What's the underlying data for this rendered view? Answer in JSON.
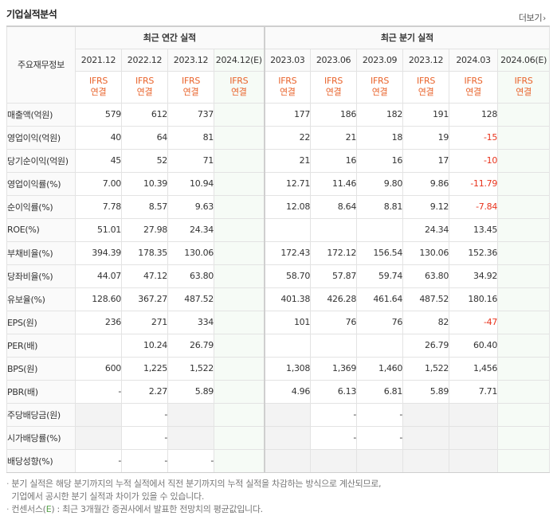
{
  "header": {
    "title": "기업실적분석",
    "more_label": "더보기"
  },
  "table": {
    "corner_label": "주요재무정보",
    "annual_group": "최근 연간 실적",
    "quarter_group": "최근 분기 실적",
    "annual_periods": [
      {
        "label": "2021.12",
        "est": false
      },
      {
        "label": "2022.12",
        "est": false
      },
      {
        "label": "2023.12",
        "est": false
      },
      {
        "label": "2024.12(E)",
        "est": true
      }
    ],
    "quarter_periods": [
      {
        "label": "2023.03",
        "est": false
      },
      {
        "label": "2023.06",
        "est": false
      },
      {
        "label": "2023.09",
        "est": false
      },
      {
        "label": "2023.12",
        "est": false
      },
      {
        "label": "2024.03",
        "est": false
      },
      {
        "label": "2024.06(E)",
        "est": true
      }
    ],
    "ifrs_label": "IFRS",
    "ifrs_sub": "연결",
    "rows": [
      {
        "label": "매출액(억원)",
        "annual": [
          "579",
          "612",
          "737",
          ""
        ],
        "quarter": [
          "177",
          "186",
          "182",
          "191",
          "128",
          ""
        ]
      },
      {
        "label": "영업이익(억원)",
        "annual": [
          "40",
          "64",
          "81",
          ""
        ],
        "quarter": [
          "22",
          "21",
          "18",
          "19",
          "-15",
          ""
        ]
      },
      {
        "label": "당기순이익(억원)",
        "annual": [
          "45",
          "52",
          "71",
          ""
        ],
        "quarter": [
          "21",
          "16",
          "16",
          "17",
          "-10",
          ""
        ]
      },
      {
        "label": "영업이익률(%)",
        "annual": [
          "7.00",
          "10.39",
          "10.94",
          ""
        ],
        "quarter": [
          "12.71",
          "11.46",
          "9.80",
          "9.86",
          "-11.79",
          ""
        ]
      },
      {
        "label": "순이익률(%)",
        "annual": [
          "7.78",
          "8.57",
          "9.63",
          ""
        ],
        "quarter": [
          "12.08",
          "8.64",
          "8.81",
          "9.12",
          "-7.84",
          ""
        ]
      },
      {
        "label": "ROE(%)",
        "annual": [
          "51.01",
          "27.98",
          "24.34",
          ""
        ],
        "quarter": [
          "",
          "",
          "",
          "24.34",
          "13.45",
          ""
        ]
      },
      {
        "label": "부채비율(%)",
        "annual": [
          "394.39",
          "178.35",
          "130.06",
          ""
        ],
        "quarter": [
          "172.43",
          "172.12",
          "156.54",
          "130.06",
          "152.36",
          ""
        ]
      },
      {
        "label": "당좌비율(%)",
        "annual": [
          "44.07",
          "47.12",
          "63.80",
          ""
        ],
        "quarter": [
          "58.70",
          "57.87",
          "59.74",
          "63.80",
          "34.92",
          ""
        ]
      },
      {
        "label": "유보율(%)",
        "annual": [
          "128.60",
          "367.27",
          "487.52",
          ""
        ],
        "quarter": [
          "401.38",
          "426.28",
          "461.64",
          "487.52",
          "180.16",
          ""
        ]
      },
      {
        "label": "EPS(원)",
        "annual": [
          "236",
          "271",
          "334",
          ""
        ],
        "quarter": [
          "101",
          "76",
          "76",
          "82",
          "-47",
          ""
        ]
      },
      {
        "label": "PER(배)",
        "annual": [
          "",
          "10.24",
          "26.79",
          ""
        ],
        "quarter": [
          "",
          "",
          "",
          "26.79",
          "60.40",
          ""
        ]
      },
      {
        "label": "BPS(원)",
        "annual": [
          "600",
          "1,225",
          "1,522",
          ""
        ],
        "quarter": [
          "1,308",
          "1,369",
          "1,460",
          "1,522",
          "1,456",
          ""
        ]
      },
      {
        "label": "PBR(배)",
        "annual": [
          "-",
          "2.27",
          "5.89",
          ""
        ],
        "quarter": [
          "4.96",
          "6.13",
          "6.81",
          "5.89",
          "7.71",
          ""
        ]
      },
      {
        "label": "주당배당금(원)",
        "annual": [
          "",
          "-",
          "",
          ""
        ],
        "quarter": [
          "",
          "-",
          "-",
          "",
          "",
          ""
        ]
      },
      {
        "label": "시가배당률(%)",
        "annual": [
          "",
          "-",
          "",
          ""
        ],
        "quarter": [
          "",
          "-",
          "-",
          "",
          "",
          ""
        ]
      },
      {
        "label": "배당성향(%)",
        "annual": [
          "-",
          "-",
          "-",
          ""
        ],
        "quarter": [
          "",
          "",
          "",
          "",
          "",
          ""
        ]
      }
    ],
    "empty_cells": {
      "13": {
        "annual": [
          0,
          2
        ],
        "quarter": [
          0,
          3,
          4
        ]
      },
      "14": {
        "annual": [
          0,
          2
        ],
        "quarter": [
          0,
          3,
          4
        ]
      },
      "15": {
        "annual": [],
        "quarter": [
          0,
          1,
          2,
          3,
          4
        ]
      }
    }
  },
  "notes": {
    "line1": "분기 실적은 해당 분기까지의 누적 실적에서 직전 분기까지의 누적 실적을 차감하는 방식으로 계산되므로,",
    "line2": "기업에서 공시한 분기 실적과 차이가 있을 수 있습니다.",
    "line3_prefix": "컨센서스(",
    "line3_mark": "E",
    "line3_suffix": ") : 최근 3개월간 증권사에서 발표한 전망치의 평균값입니다."
  }
}
